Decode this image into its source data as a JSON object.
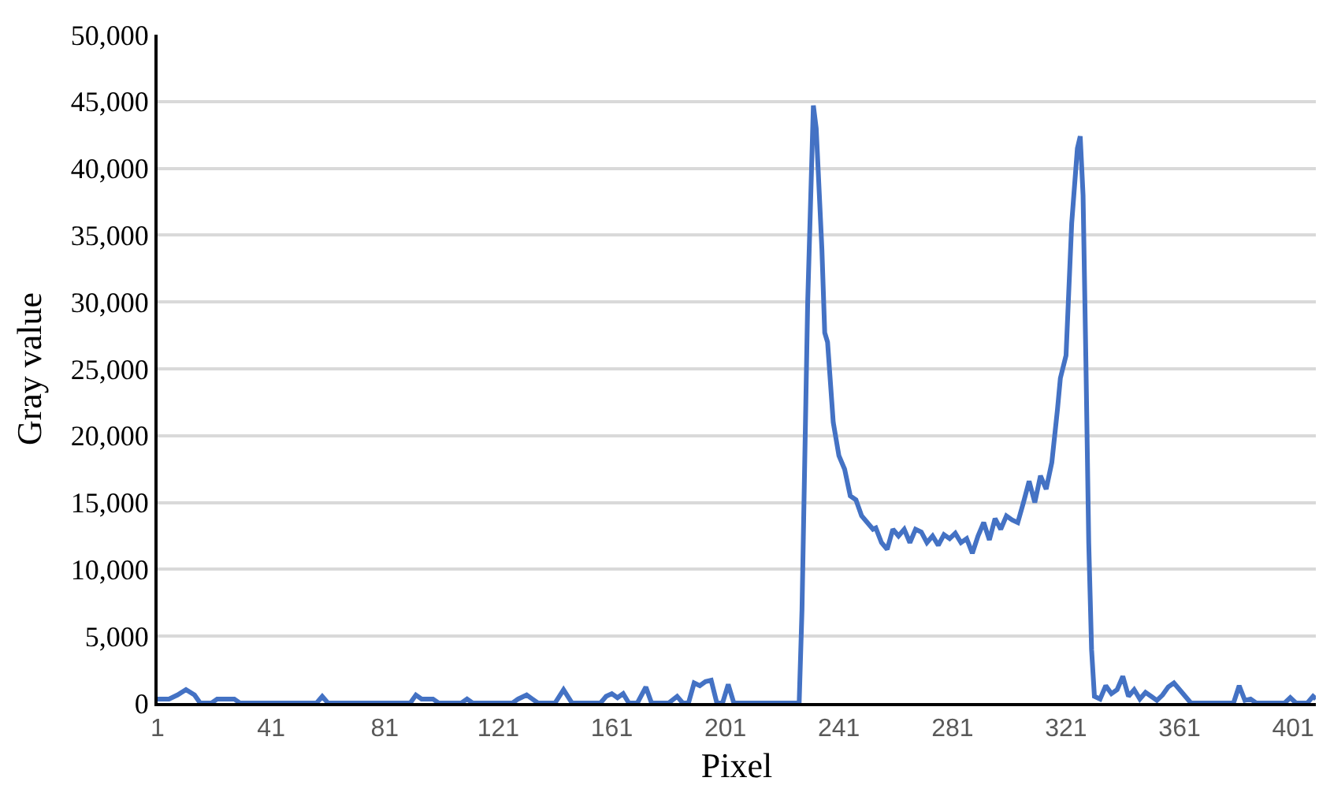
{
  "chart_data": {
    "type": "line",
    "xlabel": "Pixel",
    "ylabel": "Gray value",
    "x": [
      1,
      5,
      8,
      11,
      14,
      16,
      20,
      22,
      28,
      30,
      57,
      59,
      61,
      90,
      92,
      94,
      98,
      100,
      108,
      110,
      112,
      126,
      128,
      131,
      133,
      135,
      141,
      144,
      147,
      157,
      159,
      161,
      163,
      165,
      167,
      170,
      173,
      175,
      181,
      184,
      186,
      188,
      190,
      192,
      194,
      196,
      198,
      200,
      202,
      204,
      227,
      228,
      230,
      232,
      233,
      235,
      236,
      237,
      239,
      241,
      243,
      245,
      247,
      249,
      251,
      253,
      254,
      256,
      258,
      260,
      262,
      264,
      266,
      268,
      270,
      272,
      274,
      276,
      278,
      280,
      282,
      284,
      286,
      288,
      290,
      292,
      294,
      296,
      298,
      300,
      302,
      304,
      306,
      308,
      310,
      312,
      314,
      316,
      318,
      319,
      321,
      323,
      325,
      326,
      327,
      328,
      329,
      330,
      331,
      333,
      335,
      337,
      339,
      341,
      343,
      345,
      347,
      349,
      351,
      353,
      355,
      357,
      359,
      361,
      363,
      365,
      380,
      382,
      384,
      386,
      388,
      398,
      400,
      402,
      406,
      408,
      409
    ],
    "series": [
      {
        "color": "#4472c4",
        "values": [
          300,
          300,
          600,
          1000,
          600,
          0,
          0,
          300,
          300,
          0,
          0,
          500,
          0,
          0,
          600,
          300,
          300,
          0,
          0,
          300,
          0,
          0,
          300,
          600,
          300,
          0,
          0,
          1000,
          0,
          0,
          500,
          700,
          400,
          700,
          0,
          0,
          1200,
          0,
          0,
          500,
          0,
          0,
          1500,
          1300,
          1600,
          1700,
          0,
          0,
          1400,
          0,
          0,
          7000,
          30000,
          44700,
          43000,
          34000,
          27700,
          27000,
          21000,
          18500,
          17500,
          15500,
          15200,
          14000,
          13500,
          13000,
          13100,
          12000,
          11500,
          13000,
          12500,
          13000,
          12000,
          13000,
          12800,
          12000,
          12500,
          11800,
          12600,
          12300,
          12700,
          12000,
          12300,
          11200,
          12500,
          13500,
          12200,
          13800,
          13000,
          14000,
          13700,
          13500,
          15000,
          16600,
          15000,
          17000,
          16000,
          18000,
          22000,
          24300,
          26000,
          35900,
          41500,
          42400,
          38000,
          25600,
          12000,
          4000,
          500,
          300,
          1300,
          700,
          1000,
          2000,
          500,
          1000,
          300,
          800,
          500,
          200,
          600,
          1200,
          1500,
          1000,
          500,
          0,
          0,
          1300,
          200,
          300,
          0,
          0,
          400,
          0,
          0,
          500,
          300
        ]
      }
    ],
    "xlim": [
      1,
      409
    ],
    "xticks": [
      1,
      41,
      81,
      121,
      161,
      201,
      241,
      281,
      321,
      361,
      401
    ],
    "ylim": [
      0,
      50000
    ],
    "yticks": [
      {
        "value": 0,
        "label": "0"
      },
      {
        "value": 5000,
        "label": "5,000"
      },
      {
        "value": 10000,
        "label": "10,000"
      },
      {
        "value": 15000,
        "label": "15,000"
      },
      {
        "value": 20000,
        "label": "20,000"
      },
      {
        "value": 25000,
        "label": "25,000"
      },
      {
        "value": 30000,
        "label": "30,000"
      },
      {
        "value": 35000,
        "label": "35,000"
      },
      {
        "value": 40000,
        "label": "40,000"
      },
      {
        "value": 45000,
        "label": "45,000"
      },
      {
        "value": 50000,
        "label": "50,000"
      }
    ],
    "grid": "y",
    "marker": "none",
    "line_style": "solid"
  }
}
